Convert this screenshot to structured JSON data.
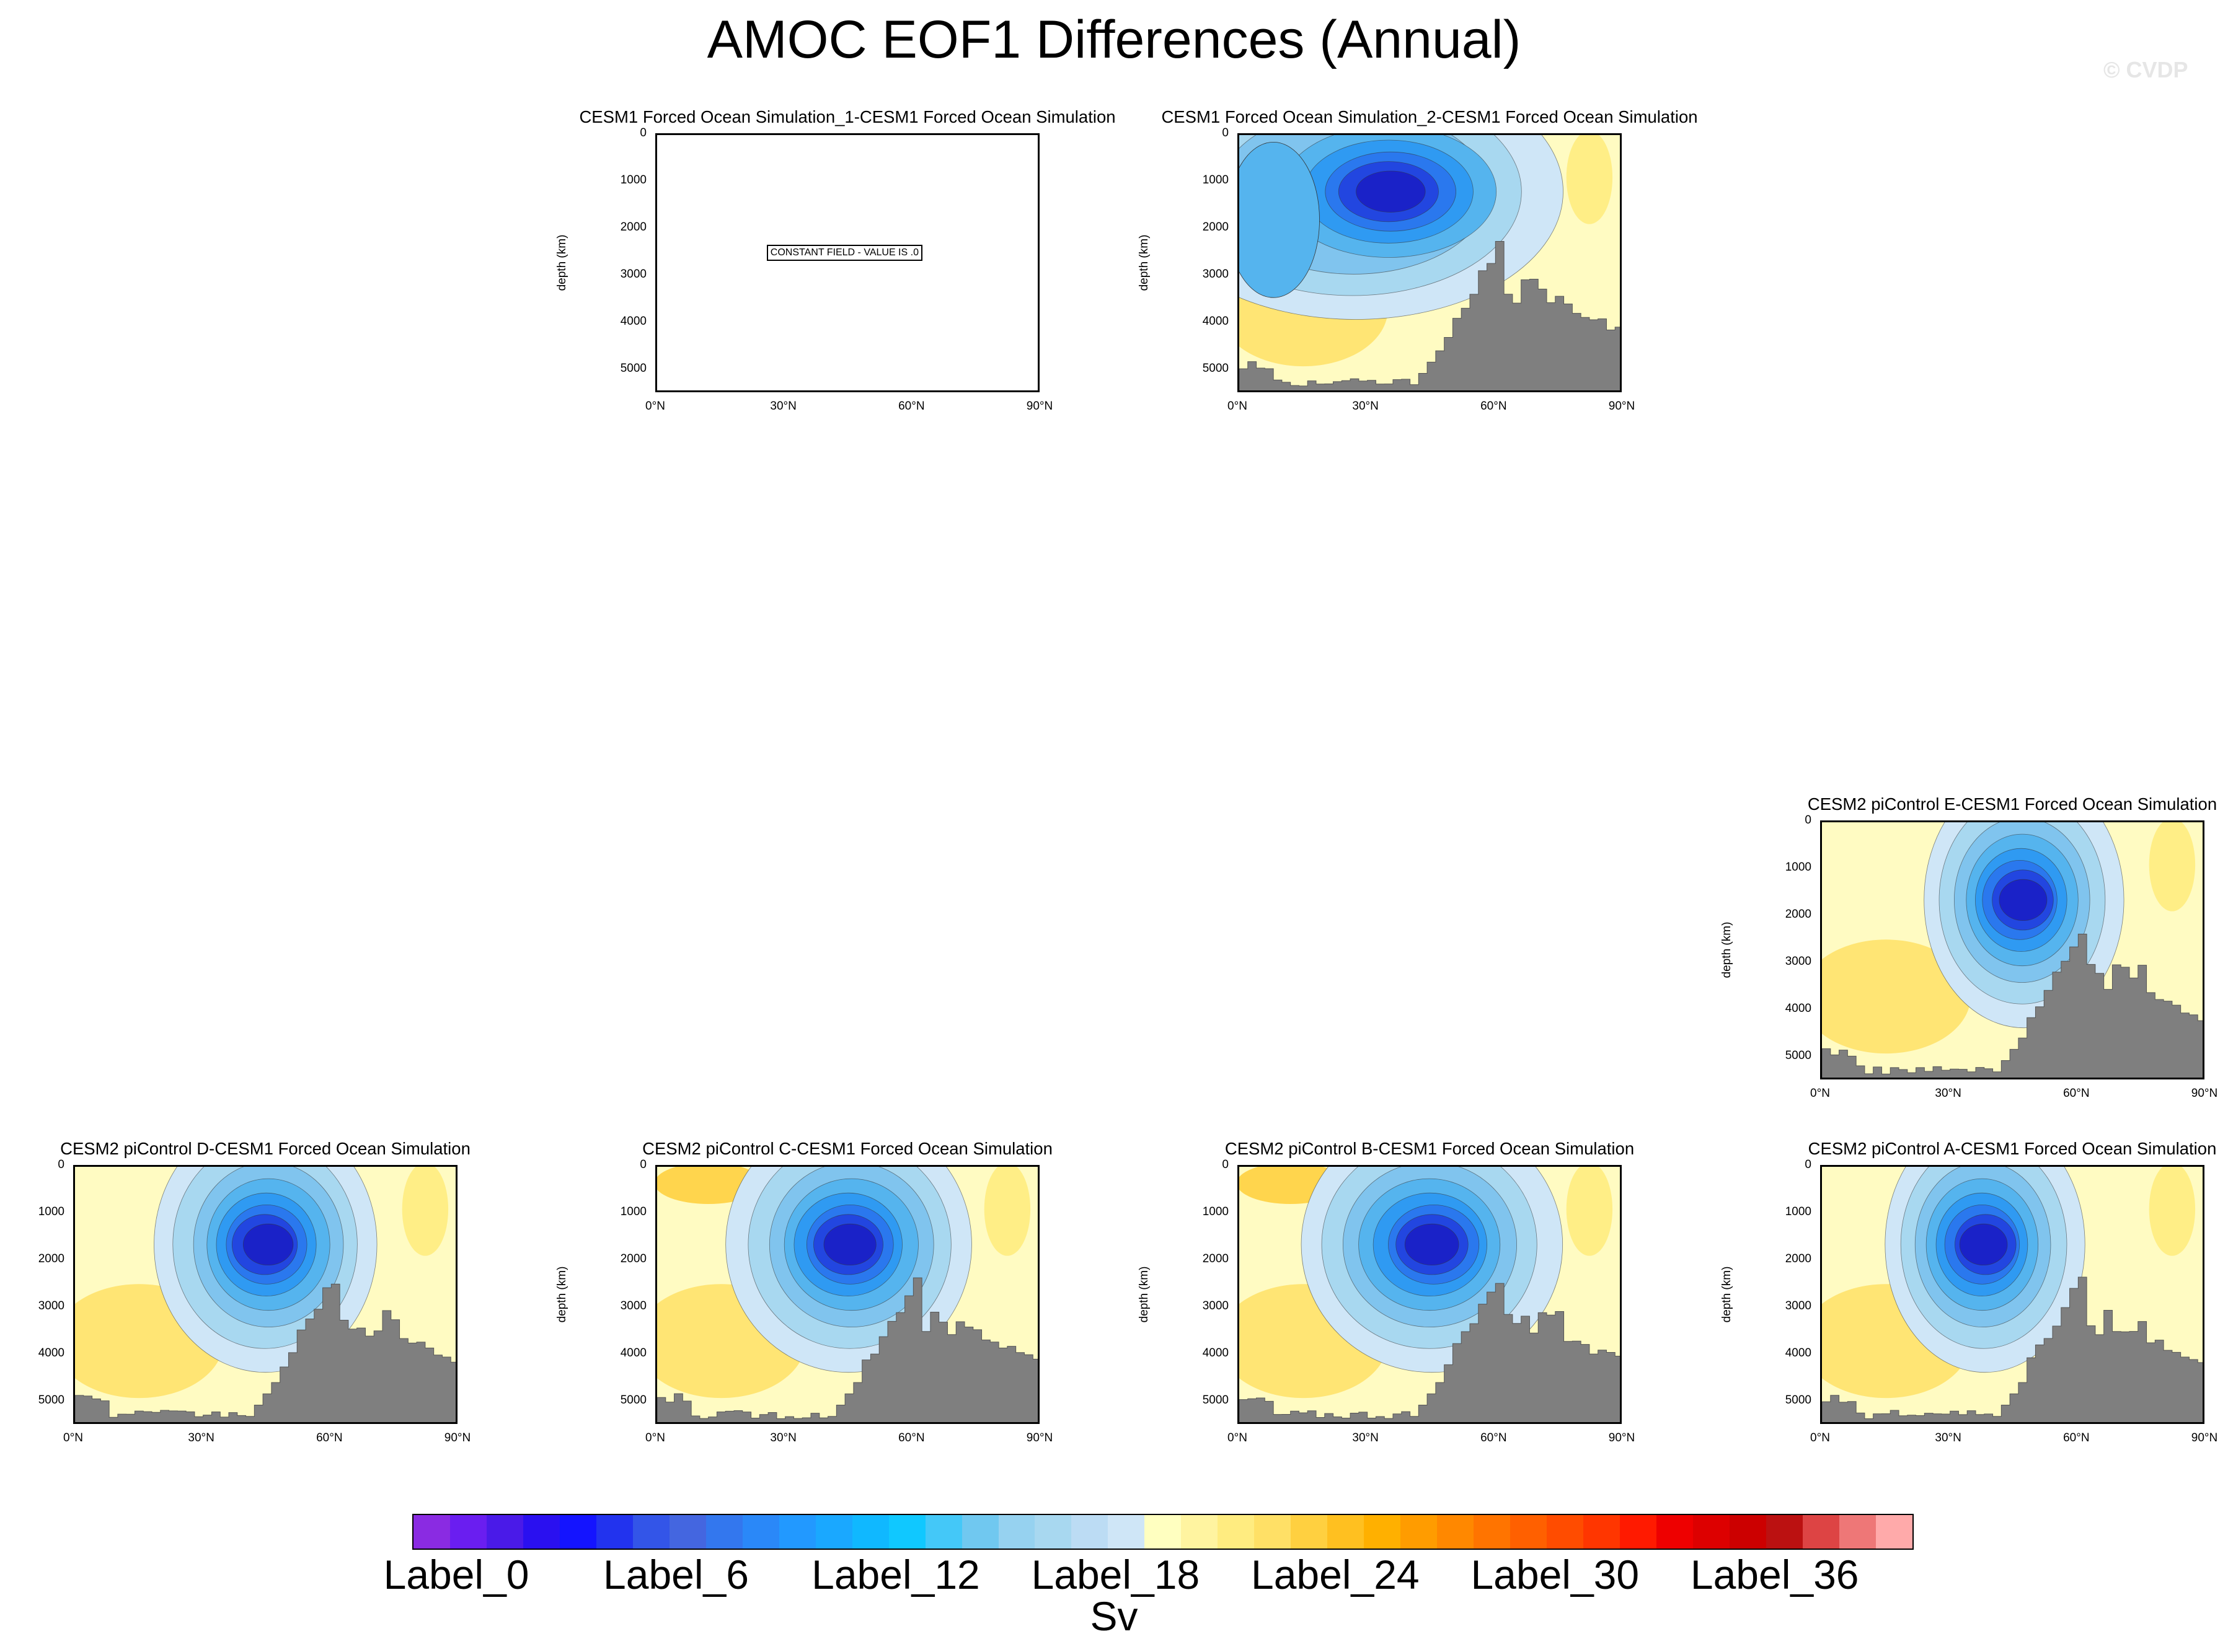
{
  "title": "AMOC EOF1 Differences (Annual)",
  "watermark": "© CVDP",
  "ylabel": "depth (km)",
  "yticks": [
    "0",
    "1000",
    "2000",
    "3000",
    "4000",
    "5000"
  ],
  "xticks": [
    "0°N",
    "30°N",
    "60°N",
    "90°N"
  ],
  "constant_field_label": "CONSTANT FIELD - VALUE IS .0",
  "panels": [
    {
      "title": "CESM1 Forced Ocean Simulation_1-CESM1 Forced Ocean Simulation",
      "constant": true
    },
    {
      "title": "CESM1 Forced Ocean Simulation_2-CESM1 Forced Ocean Simulation",
      "constant": false
    },
    {
      "title": "CESM2 piControl E-CESM1 Forced Ocean Simulation",
      "constant": false
    },
    {
      "title": "CESM2 piControl D-CESM1 Forced Ocean Simulation",
      "constant": false
    },
    {
      "title": "CESM2 piControl C-CESM1 Forced Ocean Simulation",
      "constant": false
    },
    {
      "title": "CESM2 piControl B-CESM1 Forced Ocean Simulation",
      "constant": false
    },
    {
      "title": "CESM2 piControl A-CESM1 Forced Ocean Simulation",
      "constant": false
    }
  ],
  "colorbar": {
    "labels": [
      "Label_0",
      "Label_6",
      "Label_12",
      "Label_18",
      "Label_24",
      "Label_30",
      "Label_36"
    ],
    "unit": "Sv",
    "colors": [
      "#8a2be2",
      "#6a1ef0",
      "#4a1ae8",
      "#2a10f0",
      "#1414ff",
      "#2233ee",
      "#3355e8",
      "#4466e0",
      "#3377ee",
      "#2a88f8",
      "#2299ff",
      "#1aa8ff",
      "#10b8ff",
      "#10c8ff",
      "#44c8f8",
      "#70c8f0",
      "#96d2f0",
      "#a8d8f0",
      "#bcdcf4",
      "#cfe6f7",
      "#ffffc0",
      "#fff4a0",
      "#ffec80",
      "#ffe066",
      "#ffd040",
      "#ffc020",
      "#ffb000",
      "#ff9c00",
      "#ff8800",
      "#ff7400",
      "#ff6000",
      "#ff4c00",
      "#ff3600",
      "#ff1a00",
      "#ee0000",
      "#dd0000",
      "#cc0000",
      "#bb1111",
      "#dd4444",
      "#ee7777",
      "#ffaaaa"
    ]
  },
  "chart_data": [
    {
      "type": "heatmap",
      "title": "CESM1 Forced Ocean Simulation_1-CESM1 Forced Ocean Simulation",
      "xlabel": "",
      "ylabel": "depth (km)",
      "xlim": [
        0,
        90
      ],
      "ylim": [
        5500,
        0
      ],
      "x": [
        "0°N",
        "30°N",
        "60°N",
        "90°N"
      ],
      "y": [
        0,
        1000,
        2000,
        3000,
        4000,
        5000
      ],
      "constant_value": 0,
      "annotation": "CONSTANT FIELD - VALUE IS .0"
    },
    {
      "type": "heatmap",
      "title": "CESM1 Forced Ocean Simulation_2-CESM1 Forced Ocean Simulation",
      "xlabel": "",
      "ylabel": "depth (km)",
      "xlim": [
        0,
        90
      ],
      "ylim": [
        5500,
        0
      ],
      "x": [
        "0°N",
        "30°N",
        "60°N",
        "90°N"
      ],
      "y": [
        0,
        1000,
        2000,
        3000,
        4000,
        5000
      ]
    },
    {
      "type": "heatmap",
      "title": "CESM2 piControl E-CESM1 Forced Ocean Simulation",
      "xlabel": "",
      "ylabel": "depth (km)",
      "xlim": [
        0,
        90
      ],
      "ylim": [
        5500,
        0
      ],
      "x": [
        "0°N",
        "30°N",
        "60°N",
        "90°N"
      ],
      "y": [
        0,
        1000,
        2000,
        3000,
        4000,
        5000
      ]
    },
    {
      "type": "heatmap",
      "title": "CESM2 piControl D-CESM1 Forced Ocean Simulation",
      "xlabel": "",
      "ylabel": "depth (km)",
      "xlim": [
        0,
        90
      ],
      "ylim": [
        5500,
        0
      ],
      "x": [
        "0°N",
        "30°N",
        "60°N",
        "90°N"
      ],
      "y": [
        0,
        1000,
        2000,
        3000,
        4000,
        5000
      ]
    },
    {
      "type": "heatmap",
      "title": "CESM2 piControl C-CESM1 Forced Ocean Simulation",
      "xlabel": "",
      "ylabel": "depth (km)",
      "xlim": [
        0,
        90
      ],
      "ylim": [
        5500,
        0
      ],
      "x": [
        "0°N",
        "30°N",
        "60°N",
        "90°N"
      ],
      "y": [
        0,
        1000,
        2000,
        3000,
        4000,
        5000
      ]
    },
    {
      "type": "heatmap",
      "title": "CESM2 piControl B-CESM1 Forced Ocean Simulation",
      "xlabel": "",
      "ylabel": "depth (km)",
      "xlim": [
        0,
        90
      ],
      "ylim": [
        5500,
        0
      ],
      "x": [
        "0°N",
        "30°N",
        "60°N",
        "90°N"
      ],
      "y": [
        0,
        1000,
        2000,
        3000,
        4000,
        5000
      ]
    },
    {
      "type": "heatmap",
      "title": "CESM2 piControl A-CESM1 Forced Ocean Simulation",
      "xlabel": "",
      "ylabel": "depth (km)",
      "xlim": [
        0,
        90
      ],
      "ylim": [
        5500,
        0
      ],
      "x": [
        "0°N",
        "30°N",
        "60°N",
        "90°N"
      ],
      "y": [
        0,
        1000,
        2000,
        3000,
        4000,
        5000
      ]
    }
  ]
}
